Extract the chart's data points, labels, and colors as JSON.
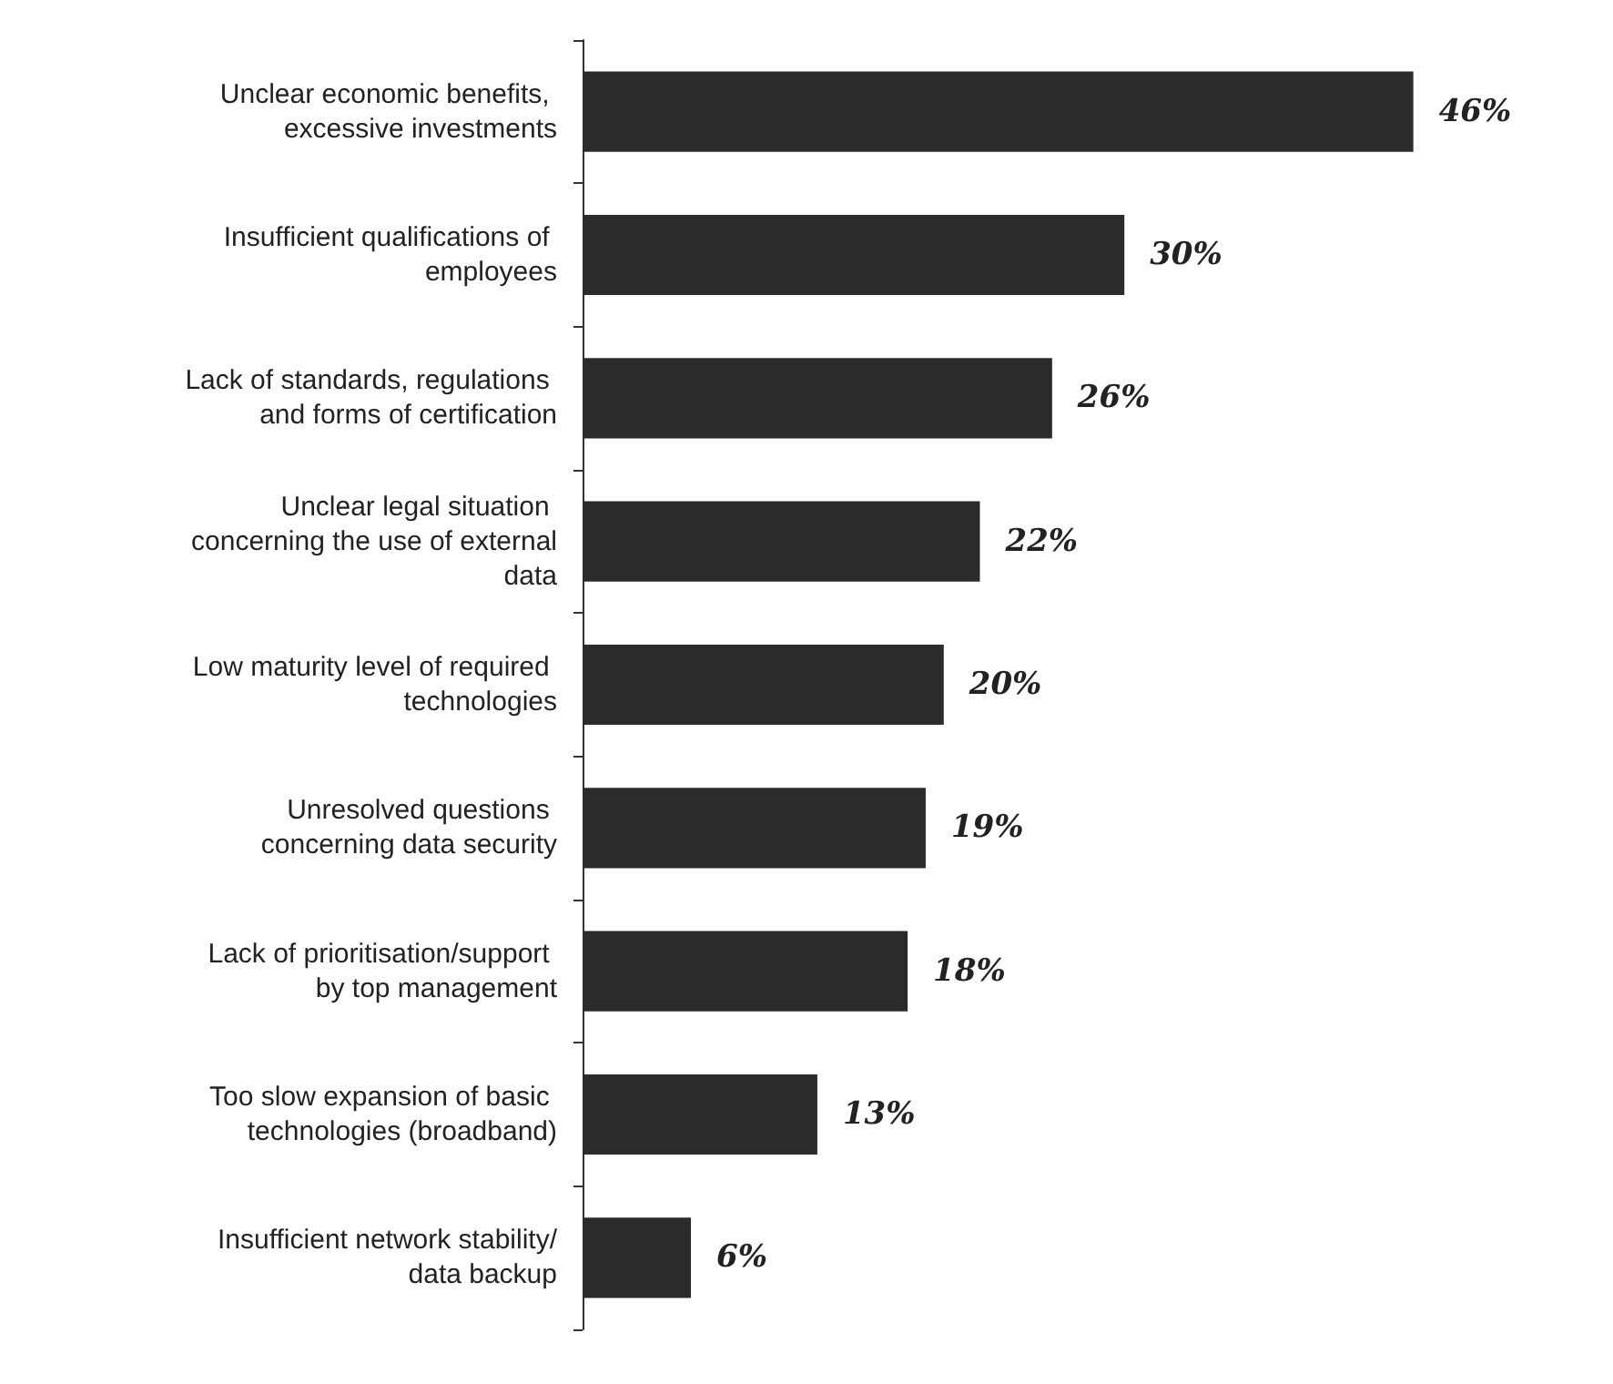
{
  "chart_data": {
    "type": "bar",
    "orientation": "horizontal",
    "categories": [
      "Unclear economic benefits, excessive investments",
      "Insufficient qualifications of employees",
      "Lack of standards, regulations and forms of certification",
      "Unclear legal situation concerning the use of external data",
      "Low maturity level of required technologies",
      "Unresolved questions concerning data security",
      "Lack of prioritisation/support by top management",
      "Too slow expansion of basic technologies (broadband)",
      "Insufficient network stability/data backup"
    ],
    "values": [
      46,
      30,
      26,
      22,
      20,
      19,
      18,
      13,
      6
    ],
    "value_labels": [
      "46%",
      "30%",
      "26%",
      "22%",
      "20%",
      "19%",
      "18%",
      "13%",
      "6%"
    ],
    "color": "#2b2b2b",
    "tick_labels": "y"
  }
}
